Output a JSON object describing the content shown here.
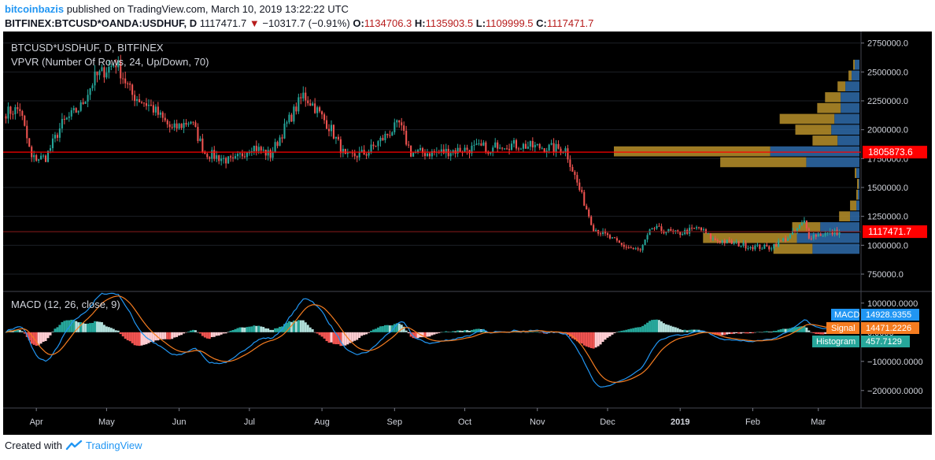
{
  "header": {
    "user": "bitcoinbazis",
    "published": "published on TradingView.com, March 10, 2019 13:22:22 UTC",
    "symbol": "BITFINEX:BTCUSD*OANDA:USDHUF, D",
    "last": "1117471.7",
    "change": "−10317.7 (−0.91%)",
    "o_label": "O:",
    "o": "1134706.3",
    "h_label": "H:",
    "h": "1135903.5",
    "l_label": "L:",
    "l": "1109999.5",
    "c_label": "C:",
    "c": "1117471.7"
  },
  "footer": {
    "created_with": "Created with",
    "brand": "TradingView",
    "logo_icon": "tradingview-logo-icon"
  },
  "colors": {
    "up": "#26a69a",
    "down": "#ef5350",
    "vp_up": "#2f6cab",
    "vp_down": "#b8902a",
    "poc": "#ff0000",
    "macd": "#2196f3",
    "signal": "#f57c20",
    "bg": "#000000",
    "text": "#cccccc"
  },
  "chart_data": [
    {
      "type": "candlestick",
      "title": "BTCUSD*USDHUF, D, BITFINEX",
      "indicator": "VPVR (Number Of Rows, 24, Up/Down, 70)",
      "x_ticks": [
        "Apr",
        "May",
        "Jun",
        "Jul",
        "Aug",
        "Sep",
        "Oct",
        "Nov",
        "Dec",
        "2019",
        "Feb",
        "Mar"
      ],
      "y_ticks": [
        "2750000.0",
        "2500000.0",
        "2250000.0",
        "2000000.0",
        "1750000.0",
        "1500000.0",
        "1250000.0",
        "1000000.0",
        "750000.0"
      ],
      "ylim": [
        600000,
        2850000
      ],
      "poc_label": "1805873.6",
      "poc_value": 1805873.6,
      "last_label": "1117471.7",
      "last_value": 1117471.7,
      "anchors": [
        {
          "date": "2018-03-19",
          "close": 2150000
        },
        {
          "date": "2018-03-25",
          "close": 2180000
        },
        {
          "date": "2018-03-30",
          "close": 1750000
        },
        {
          "date": "2018-04-05",
          "close": 1760000
        },
        {
          "date": "2018-04-12",
          "close": 2050000
        },
        {
          "date": "2018-04-20",
          "close": 2200000
        },
        {
          "date": "2018-04-26",
          "close": 2450000
        },
        {
          "date": "2018-05-05",
          "close": 2580000
        },
        {
          "date": "2018-05-12",
          "close": 2300000
        },
        {
          "date": "2018-05-20",
          "close": 2200000
        },
        {
          "date": "2018-05-29",
          "close": 2000000
        },
        {
          "date": "2018-06-06",
          "close": 2080000
        },
        {
          "date": "2018-06-12",
          "close": 1800000
        },
        {
          "date": "2018-06-24",
          "close": 1720000
        },
        {
          "date": "2018-07-02",
          "close": 1860000
        },
        {
          "date": "2018-07-10",
          "close": 1780000
        },
        {
          "date": "2018-07-17",
          "close": 2050000
        },
        {
          "date": "2018-07-24",
          "close": 2300000
        },
        {
          "date": "2018-07-28",
          "close": 2220000
        },
        {
          "date": "2018-08-05",
          "close": 2000000
        },
        {
          "date": "2018-08-11",
          "close": 1760000
        },
        {
          "date": "2018-08-20",
          "close": 1800000
        },
        {
          "date": "2018-09-03",
          "close": 2050000
        },
        {
          "date": "2018-09-08",
          "close": 1800000
        },
        {
          "date": "2018-09-18",
          "close": 1800000
        },
        {
          "date": "2018-10-10",
          "close": 1850000
        },
        {
          "date": "2018-10-11",
          "close": 1770000
        },
        {
          "date": "2018-10-15",
          "close": 1880000
        },
        {
          "date": "2018-11-13",
          "close": 1830000
        },
        {
          "date": "2018-11-19",
          "close": 1480000
        },
        {
          "date": "2018-11-25",
          "close": 1150000
        },
        {
          "date": "2018-12-07",
          "close": 1000000
        },
        {
          "date": "2018-12-15",
          "close": 950000
        },
        {
          "date": "2018-12-20",
          "close": 1150000
        },
        {
          "date": "2018-12-31",
          "close": 1100000
        },
        {
          "date": "2019-01-09",
          "close": 1150000
        },
        {
          "date": "2019-01-15",
          "close": 1050000
        },
        {
          "date": "2019-01-31",
          "close": 990000
        },
        {
          "date": "2019-02-08",
          "close": 980000
        },
        {
          "date": "2019-02-17",
          "close": 1080000
        },
        {
          "date": "2019-02-23",
          "close": 1200000
        },
        {
          "date": "2019-02-25",
          "close": 1080000
        },
        {
          "date": "2019-03-10",
          "close": 1117471.7
        }
      ],
      "volume_profile": [
        {
          "price": 2562500,
          "up": 3,
          "down": 1
        },
        {
          "price": 2468750,
          "up": 5,
          "down": 2
        },
        {
          "price": 2375000,
          "up": 9,
          "down": 5
        },
        {
          "price": 2281250,
          "up": 12,
          "down": 10
        },
        {
          "price": 2187500,
          "up": 12,
          "down": 15
        },
        {
          "price": 2093750,
          "up": 16,
          "down": 35
        },
        {
          "price": 2000000,
          "up": 18,
          "down": 23
        },
        {
          "price": 1906250,
          "up": 14,
          "down": 16
        },
        {
          "price": 1812500,
          "up": 57,
          "down": 100
        },
        {
          "price": 1718750,
          "up": 34,
          "down": 55
        },
        {
          "price": 1625000,
          "up": 2,
          "down": 1
        },
        {
          "price": 1531250,
          "up": 0.5,
          "down": 1
        },
        {
          "price": 1437500,
          "up": 1,
          "down": 1
        },
        {
          "price": 1343750,
          "up": 2,
          "down": 4
        },
        {
          "price": 1250000,
          "up": 6,
          "down": 7
        },
        {
          "price": 1156250,
          "up": 25,
          "down": 18
        },
        {
          "price": 1062500,
          "up": 40,
          "down": 60
        },
        {
          "price": 968750,
          "up": 30,
          "down": 25
        }
      ]
    },
    {
      "type": "macd",
      "title": "MACD (12, 26, close, 9)",
      "y_ticks": [
        "100000.0000",
        "0.0000",
        "−100000.0000",
        "−200000.0000"
      ],
      "ylim": [
        -260000,
        140000
      ],
      "macd_label": "MACD",
      "macd_value": "14928.9355",
      "signal_label": "Signal",
      "signal_value": "14471.2226",
      "histogram_label": "Histogram",
      "histogram_value": "457.7129"
    }
  ]
}
